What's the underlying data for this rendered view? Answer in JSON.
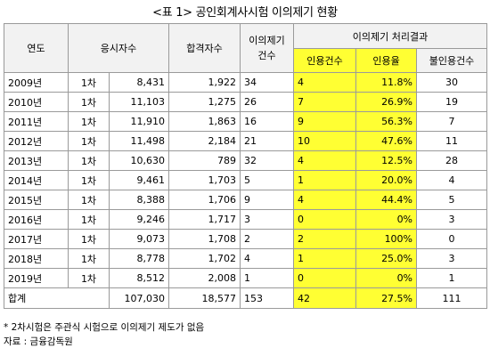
{
  "title": "<표 1> 공인회계사시험 이의제기 현황",
  "headers": {
    "year": "연도",
    "applicants": "응시자수",
    "passers": "합격자수",
    "objections": "이의제기\n건수",
    "result_group": "이의제기 처리결과",
    "accepted": "인용건수",
    "rate": "인용율",
    "rejected": "불인용건수"
  },
  "rows": [
    {
      "year": "2009년",
      "round": "1차",
      "applicants": "8,431",
      "passers": "1,922",
      "objections": "34",
      "accepted": "4",
      "rate": "11.8%",
      "rejected": "30"
    },
    {
      "year": "2010년",
      "round": "1차",
      "applicants": "11,103",
      "passers": "1,275",
      "objections": "26",
      "accepted": "7",
      "rate": "26.9%",
      "rejected": "19"
    },
    {
      "year": "2011년",
      "round": "1차",
      "applicants": "11,910",
      "passers": "1,863",
      "objections": "16",
      "accepted": "9",
      "rate": "56.3%",
      "rejected": "7"
    },
    {
      "year": "2012년",
      "round": "1차",
      "applicants": "11,498",
      "passers": "2,184",
      "objections": "21",
      "accepted": "10",
      "rate": "47.6%",
      "rejected": "11"
    },
    {
      "year": "2013년",
      "round": "1차",
      "applicants": "10,630",
      "passers": "789",
      "objections": "32",
      "accepted": "4",
      "rate": "12.5%",
      "rejected": "28"
    },
    {
      "year": "2014년",
      "round": "1차",
      "applicants": "9,461",
      "passers": "1,703",
      "objections": "5",
      "accepted": "1",
      "rate": "20.0%",
      "rejected": "4"
    },
    {
      "year": "2015년",
      "round": "1차",
      "applicants": "8,388",
      "passers": "1,706",
      "objections": "9",
      "accepted": "4",
      "rate": "44.4%",
      "rejected": "5"
    },
    {
      "year": "2016년",
      "round": "1차",
      "applicants": "9,246",
      "passers": "1,717",
      "objections": "3",
      "accepted": "0",
      "rate": "0%",
      "rejected": "3"
    },
    {
      "year": "2017년",
      "round": "1차",
      "applicants": "9,073",
      "passers": "1,708",
      "objections": "2",
      "accepted": "2",
      "rate": "100%",
      "rejected": "0"
    },
    {
      "year": "2018년",
      "round": "1차",
      "applicants": "8,778",
      "passers": "1,702",
      "objections": "4",
      "accepted": "1",
      "rate": "25.0%",
      "rejected": "3"
    },
    {
      "year": "2019년",
      "round": "1차",
      "applicants": "8,512",
      "passers": "2,008",
      "objections": "1",
      "accepted": "0",
      "rate": "0%",
      "rejected": "1"
    }
  ],
  "total": {
    "year": "합계",
    "applicants": "107,030",
    "passers": "18,577",
    "objections": "153",
    "accepted": "42",
    "rate": "27.5%",
    "rejected": "111"
  },
  "notes": {
    "footnote": "* 2차시험은 주관식 시험으로 이의제기 제도가 없음",
    "source": "자료 : 금융감독원"
  },
  "colors": {
    "highlight": "#ffff33",
    "header_bg": "#f2f2f2",
    "border": "#9a9a9a"
  }
}
